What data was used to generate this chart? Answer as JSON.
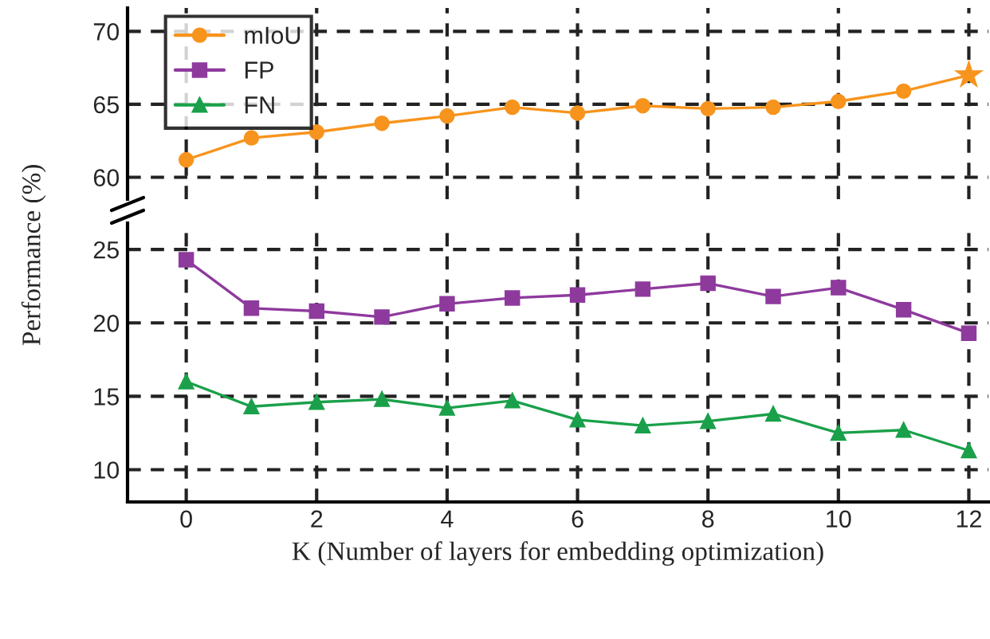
{
  "chart_data": [
    {
      "type": "line",
      "x": [
        0,
        1,
        2,
        3,
        4,
        5,
        6,
        7,
        8,
        9,
        10,
        11,
        12
      ],
      "xlim": [
        -0.9,
        12.3
      ],
      "xticks": [
        0,
        2,
        4,
        6,
        8,
        10,
        12
      ],
      "ylim": [
        58.5,
        71.6
      ],
      "yticks": [
        60,
        65,
        70
      ],
      "tick_labels": "y",
      "grid": true,
      "legend": "top left",
      "marker": "circle",
      "line_style": "solid",
      "series": [
        {
          "name": "mIoU",
          "color": "#f7941d",
          "values": [
            61.2,
            62.7,
            63.1,
            63.7,
            64.2,
            64.8,
            64.4,
            64.9,
            64.7,
            64.8,
            65.2,
            65.9,
            67.0
          ]
        },
        {
          "type": "scatter",
          "color": "#f7941d",
          "marker": "star",
          "x": [
            12
          ],
          "values": [
            67.0
          ]
        }
      ]
    },
    {
      "type": "line",
      "x": [
        0,
        1,
        2,
        3,
        4,
        5,
        6,
        7,
        8,
        9,
        10,
        11,
        12
      ],
      "xlim": [
        -0.9,
        12.3
      ],
      "xticks": [
        0,
        2,
        4,
        6,
        8,
        10,
        12
      ],
      "ylim": [
        7.8,
        26.8
      ],
      "yticks": [
        10,
        15,
        20,
        25
      ],
      "grid": true,
      "xlabel": "K (Number of layers for embedding optimization)",
      "ylabel": "Performance (%)",
      "line_style": "solid",
      "legend": "top left",
      "series": [
        {
          "name": "FP",
          "color": "#8e3a9d",
          "marker": "square",
          "values": [
            24.3,
            21.0,
            20.8,
            20.4,
            21.3,
            21.7,
            21.9,
            22.3,
            22.7,
            21.8,
            22.4,
            20.9,
            19.3
          ]
        },
        {
          "name": "FN",
          "color": "#1aa04a",
          "marker": "triangle",
          "values": [
            16.0,
            14.3,
            14.6,
            14.8,
            14.2,
            14.7,
            13.4,
            13.0,
            13.3,
            13.8,
            12.5,
            12.7,
            11.3
          ]
        }
      ]
    }
  ]
}
